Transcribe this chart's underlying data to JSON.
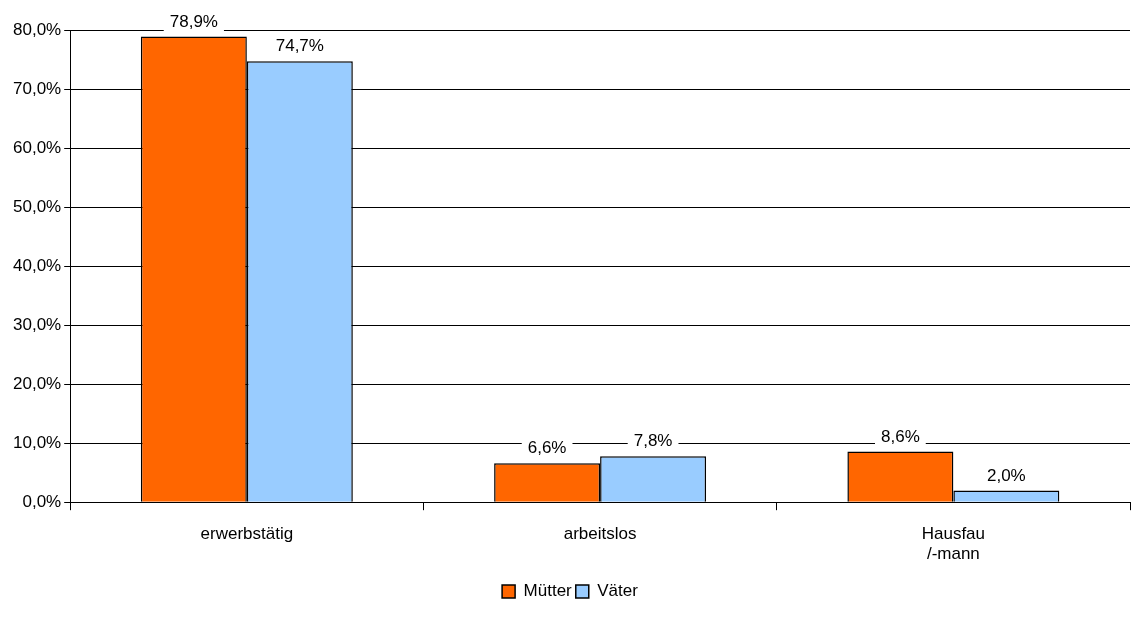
{
  "chart_data": {
    "type": "bar",
    "categories": [
      "erwerbstätig",
      "arbeitslos",
      "Hausfau\n/-mann"
    ],
    "series": [
      {
        "name": "Mütter",
        "color": "#ff6600",
        "values": [
          78.9,
          6.6,
          8.6
        ],
        "value_labels": [
          "78,9%",
          "6,6%",
          "8,6%"
        ]
      },
      {
        "name": "Väter",
        "color": "#99ccff",
        "values": [
          74.7,
          7.8,
          2.0
        ],
        "value_labels": [
          "74,7%",
          "7,8%",
          "2,0%"
        ]
      }
    ],
    "ylim": [
      0,
      80
    ],
    "yticks": [
      {
        "value": 0,
        "label": "0,0%"
      },
      {
        "value": 10,
        "label": "10,0%"
      },
      {
        "value": 20,
        "label": "20,0%"
      },
      {
        "value": 30,
        "label": "30,0%"
      },
      {
        "value": 40,
        "label": "40,0%"
      },
      {
        "value": 50,
        "label": "50,0%"
      },
      {
        "value": 60,
        "label": "60,0%"
      },
      {
        "value": 70,
        "label": "70,0%"
      },
      {
        "value": 80,
        "label": "80,0%"
      }
    ],
    "grid": "y",
    "legend": "bottom"
  }
}
